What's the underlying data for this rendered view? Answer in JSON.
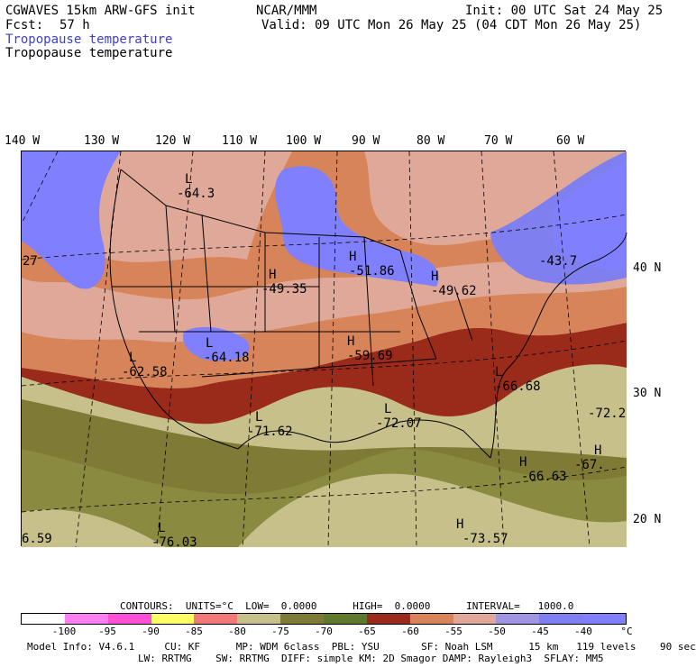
{
  "header": {
    "model": "CGWAVES 15km ARW-GFS init",
    "source": "NCAR/MMM",
    "init": "Init: 00 UTC Sat 24 May 25",
    "fcst_label": "Fcst:",
    "fcst_value": "57 h",
    "valid": "Valid: 09 UTC Mon 26 May 25 (04 CDT Mon 26 May 25)",
    "field_colored": "Tropopause temperature",
    "field_plain": "Tropopause temperature"
  },
  "longitude_labels": [
    "140 W",
    "130 W",
    "120 W",
    "110 W",
    "100 W",
    "90 W",
    "80 W",
    "70 W",
    "60 W"
  ],
  "latitude_labels": [
    "40 N",
    "30 N",
    "20 N"
  ],
  "map_annotations": [
    {
      "marker": "L",
      "value": "-64.3"
    },
    {
      "marker": "H",
      "value": "-49.35"
    },
    {
      "marker": "H",
      "value": "-51.86"
    },
    {
      "marker": "H",
      "value": "-49.62"
    },
    {
      "marker": "",
      "value": "-43.7"
    },
    {
      "marker": "L",
      "value": "-62.58"
    },
    {
      "marker": "L",
      "value": "-64.18"
    },
    {
      "marker": "H",
      "value": "-59.69"
    },
    {
      "marker": "L",
      "value": "-66.68"
    },
    {
      "marker": "L",
      "value": "-71.62"
    },
    {
      "marker": "L",
      "value": "-72.07"
    },
    {
      "marker": "",
      "value": "-72.2"
    },
    {
      "marker": "H",
      "value": "-67."
    },
    {
      "marker": "H",
      "value": "-66.63"
    },
    {
      "marker": "L",
      "value": "-76.03"
    },
    {
      "marker": "H",
      "value": "-73.57"
    },
    {
      "marker": "",
      "value": "27"
    },
    {
      "marker": "",
      "value": "6.59"
    }
  ],
  "contours_line": "CONTOURS:  UNITS=°C  LOW=  0.0000      HIGH=  0.0000      INTERVAL=   1000.0",
  "legend": {
    "colors": [
      "#ffffff",
      "#ff7ff0",
      "#ff4fd6",
      "#ffff66",
      "#f07a7a",
      "#c8c08a",
      "#7f7a36",
      "#5f7a2e",
      "#9a2a1a",
      "#d8845a",
      "#e0a898",
      "#9f95e0",
      "#7f7ff0",
      "#8080ff"
    ],
    "ticks": [
      "-100",
      "-95",
      "-90",
      "-85",
      "-80",
      "-75",
      "-70",
      "-65",
      "-60",
      "-55",
      "-50",
      "-45",
      "-40",
      "°C"
    ]
  },
  "footer": {
    "line1": "Model Info: V4.6.1     CU: KF      MP: WDM 6class  PBL: YSU       SF: Noah LSM      15 km   119 levels    90 sec",
    "line2": "LW: RRTMG    SW: RRTMG  DIFF: simple KM: 2D Smagor DAMP: Rayleigh3  SFLAY: MM5"
  }
}
